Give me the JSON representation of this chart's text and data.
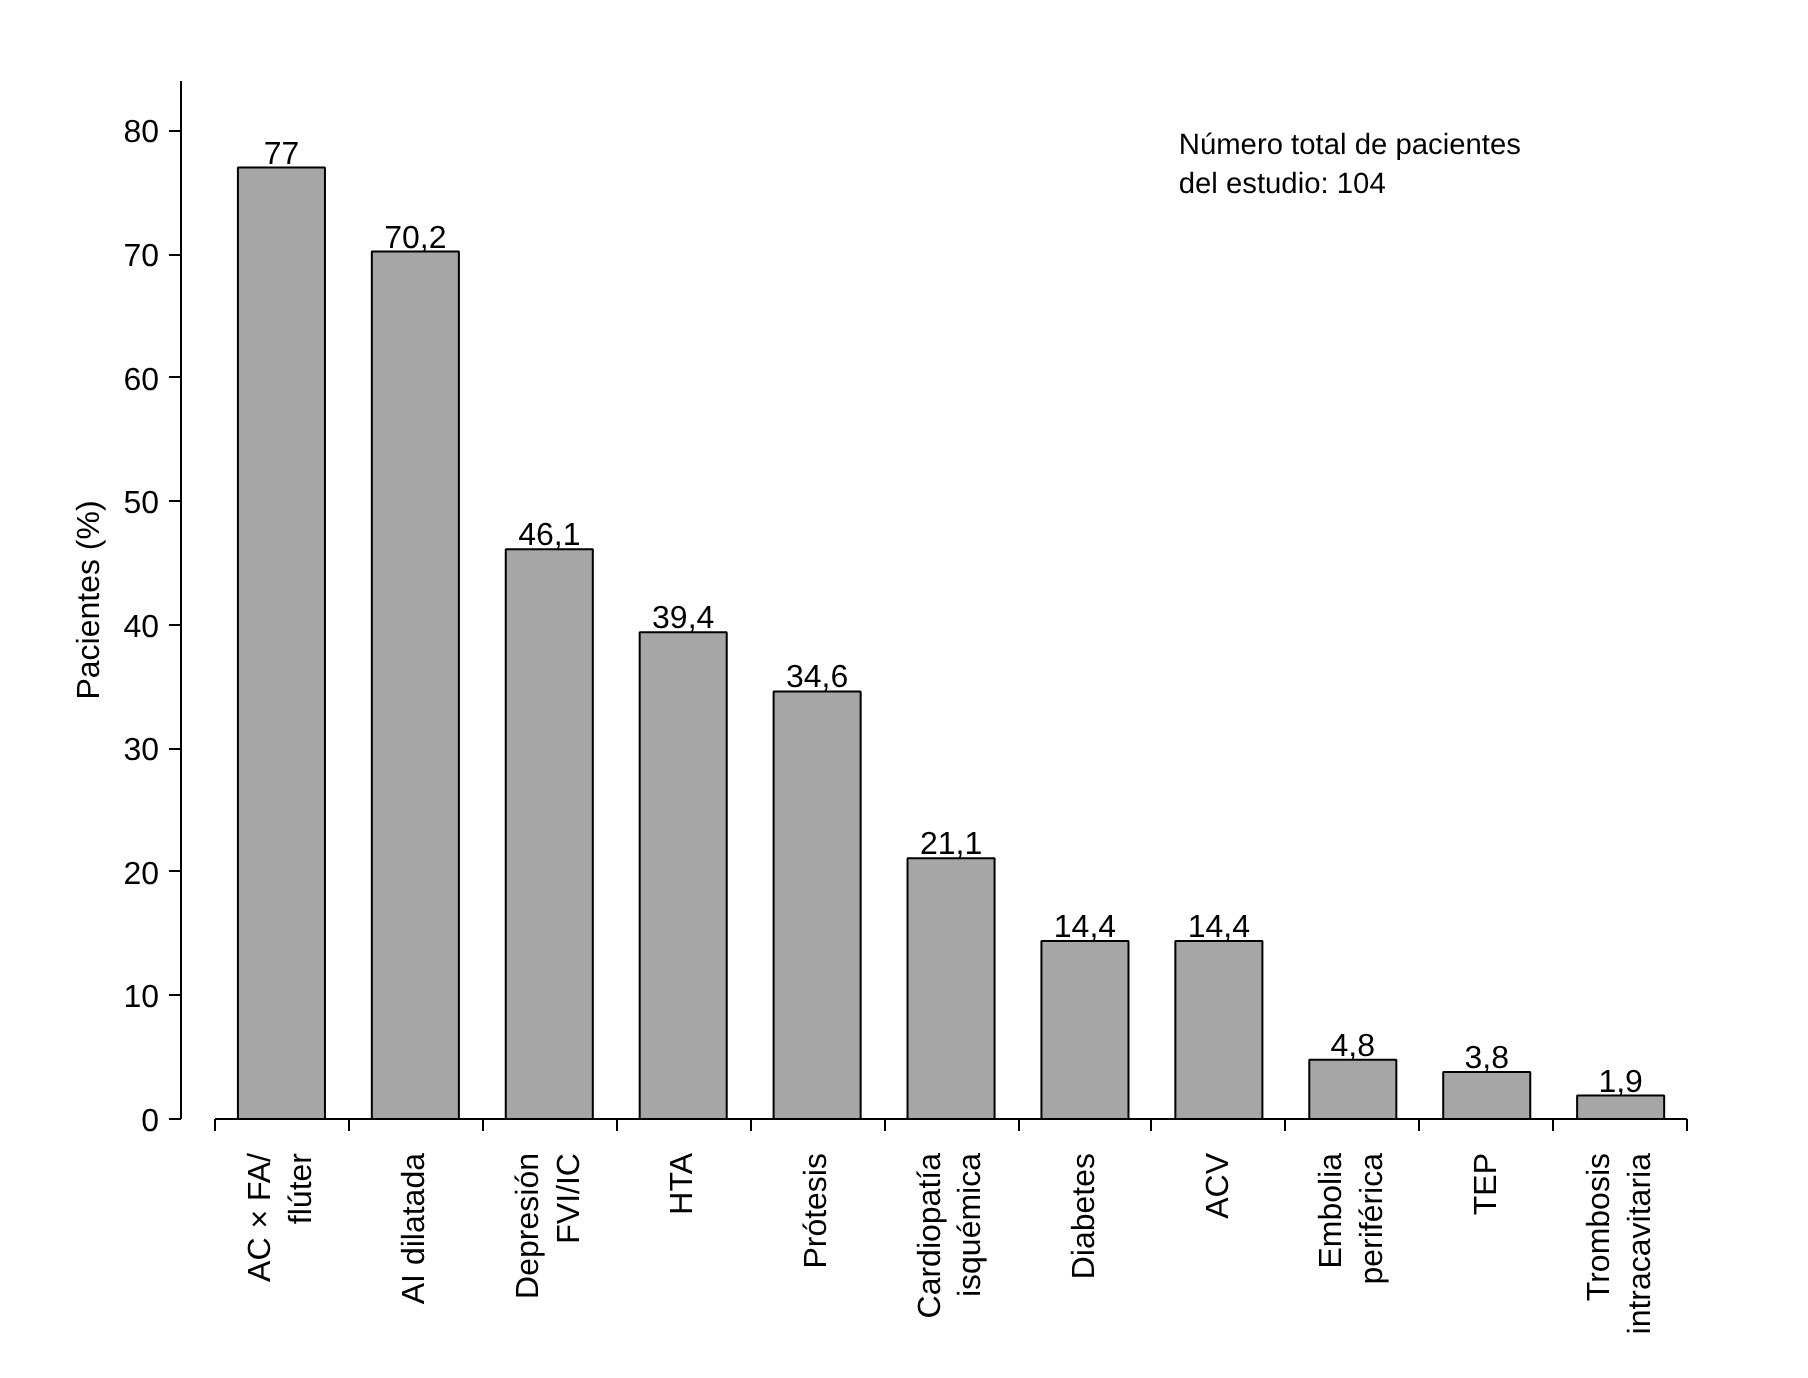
{
  "chart_data": {
    "type": "bar",
    "ylabel": "Pacientes (%)",
    "categories": [
      "AC × FA/\nflúter",
      "AI dilatada",
      "Depresión\nFVI/IC",
      "HTA",
      "Prótesis",
      "Cardiopatía\nisquémica",
      "Diabetes",
      "ACV",
      "Embolia\nperiférica",
      "TEP",
      "Trombosis\nintracavitaria"
    ],
    "values": [
      77,
      70.2,
      46.1,
      39.4,
      34.6,
      21.1,
      14.4,
      14.4,
      4.8,
      3.8,
      1.9
    ],
    "value_labels": [
      "77",
      "70,2",
      "46,1",
      "39,4",
      "34,6",
      "21,1",
      "14,4",
      "14,4",
      "4,8",
      "3,8",
      "1,9"
    ],
    "color": "#a6a6a6",
    "ylim": [
      0,
      84
    ],
    "yticks": [
      0,
      10,
      20,
      30,
      40,
      50,
      60,
      70,
      80
    ],
    "grid": false,
    "annotations": [
      "Número total de pacientes\ndel estudio: 104"
    ]
  }
}
